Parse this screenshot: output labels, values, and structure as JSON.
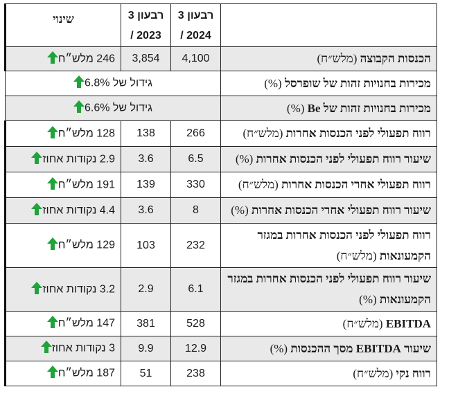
{
  "header": {
    "metric": "",
    "q2024_line1": "רבעון 3",
    "q2024_line2": "2024 /",
    "q2023_line1": "רבעון 3",
    "q2023_line2": "2023 /",
    "change": "שינוי"
  },
  "arrow_color": "#1fa33a",
  "shade_color": "#e9e9ea",
  "rows": [
    {
      "label": "הכנסות הקבוצה",
      "unit": " (מלש״ח)",
      "v2024": "4,100",
      "v2023": "3,854",
      "change": "246 מלש״ח",
      "shaded": true
    },
    {
      "label": "מכירות בחנויות זהות של שופרסל",
      "unit": " (%)",
      "change": "גידול של 6.8%",
      "merged": true,
      "shaded": false
    },
    {
      "label": "מכירות בחנויות זהות של Be",
      "unit": " (%)",
      "change": "גידול של 6.6%",
      "merged": true,
      "shaded": true
    },
    {
      "label": "רווח תפעולי לפני הכנסות אחרות",
      "unit": " (מלש״ח)",
      "v2024": "266",
      "v2023": "138",
      "change": "128 מלש״ח",
      "shaded": false
    },
    {
      "label": "שיעור רווח תפעולי לפני הכנסות אחרות",
      "unit": " (%)",
      "v2024": "6.5",
      "v2023": "3.6",
      "change": "2.9 נקודות אחוז",
      "shaded": true
    },
    {
      "label": "רווח תפעולי אחרי הכנסות אחרות",
      "unit": " (מלש״ח)",
      "v2024": "330",
      "v2023": "139",
      "change": "191 מלש״ח",
      "shaded": false
    },
    {
      "label": "שיעור רווח תפעולי אחרי הכנסות אחרות",
      "unit": " (%)",
      "v2024": "8",
      "v2023": "3.6",
      "change": "4.4 נקודות אחוז",
      "shaded": true
    },
    {
      "label": "רווח תפעולי לפני הכנסות אחרות במגזר הקמעונאות",
      "unit": " (מלש״ח)",
      "v2024": "232",
      "v2023": "103",
      "change": "129 מלש״ח",
      "shaded": false,
      "tall": true
    },
    {
      "label": "שיעור רווח תפעולי לפני הכנסות אחרות במגזר הקמעונאות",
      "unit": " (%)",
      "v2024": "6.1",
      "v2023": "2.9",
      "change": "3.2 נקודות אחוז",
      "shaded": true,
      "tall": true
    },
    {
      "label": "EBITDA",
      "unit": " (מלש״ח)",
      "v2024": "528",
      "v2023": "381",
      "change": "147 מלש״ח",
      "shaded": false
    },
    {
      "label": "שיעור EBITDA מסך ההכנסות",
      "unit": " (%)",
      "v2024": "12.9",
      "v2023": "9.9",
      "change": "3 נקודות אחוז",
      "shaded": true
    },
    {
      "label": "רווח נקי",
      "unit": " (מלש״ח)",
      "v2024": "238",
      "v2023": "51",
      "change": "187 מלש״ח",
      "shaded": false
    }
  ]
}
